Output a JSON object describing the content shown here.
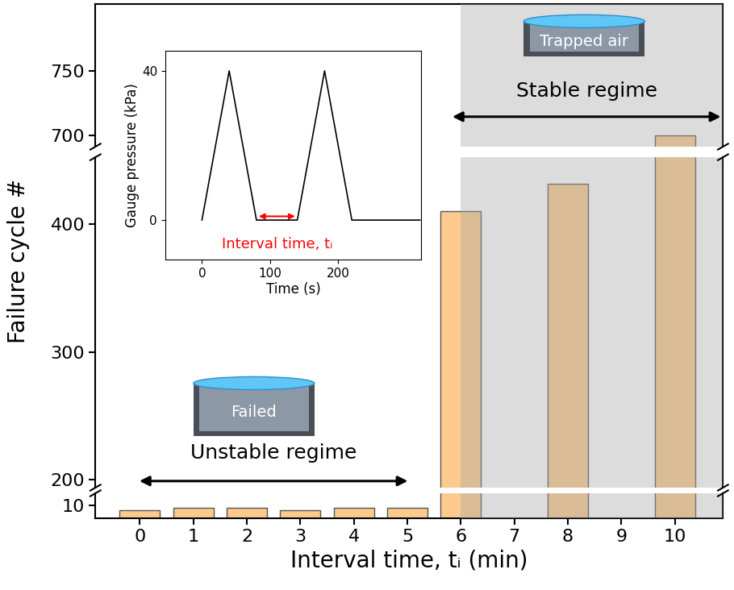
{
  "chart_data": {
    "type": "bar",
    "x": [
      0,
      1,
      2,
      3,
      4,
      5,
      6,
      8,
      10
    ],
    "values": [
      6,
      8,
      8,
      6,
      8,
      8,
      410,
      431,
      700
    ],
    "color": "#fcca8c",
    "x_label": "Interval time, tᵢ (min)",
    "y_label": "Failure cycle #",
    "xlim": [
      -0.83,
      10.9
    ],
    "xticks": [
      0,
      1,
      2,
      3,
      4,
      5,
      6,
      7,
      8,
      9,
      10
    ],
    "y_segments": [
      {
        "ylim": [
          0,
          19
        ],
        "yticks": [
          10
        ]
      },
      {
        "ylim": [
          194,
          452
        ],
        "yticks": [
          200,
          300,
          400
        ]
      },
      {
        "ylim": [
          691,
          802
        ],
        "yticks": [
          700,
          750
        ]
      }
    ],
    "regimes": [
      {
        "label": "Unstable regime",
        "x": [
          -0.05,
          5.05
        ]
      },
      {
        "label": "Stable regime",
        "x": [
          5.8,
          10.9
        ],
        "shade": [
          6,
          10.9
        ]
      }
    ],
    "annotations": [
      {
        "text": "Failed"
      },
      {
        "text": "Trapped air"
      }
    ],
    "inset": {
      "type": "line",
      "x": [
        0,
        40,
        80,
        140,
        180,
        220,
        320
      ],
      "values": [
        0,
        40,
        0,
        0,
        40,
        0,
        0
      ],
      "color": "#000000",
      "x_label": "Time (s)",
      "y_label": "Gauge pressure (kPa)",
      "xlim": [
        -54,
        322
      ],
      "ylim": [
        -10.6,
        45.4
      ],
      "xticks": [
        0,
        100,
        200
      ],
      "yticks": [
        0,
        40
      ],
      "annotation": {
        "text": "Interval time, tᵢ",
        "x": [
          80,
          140
        ],
        "color": "#ff0000"
      }
    }
  }
}
